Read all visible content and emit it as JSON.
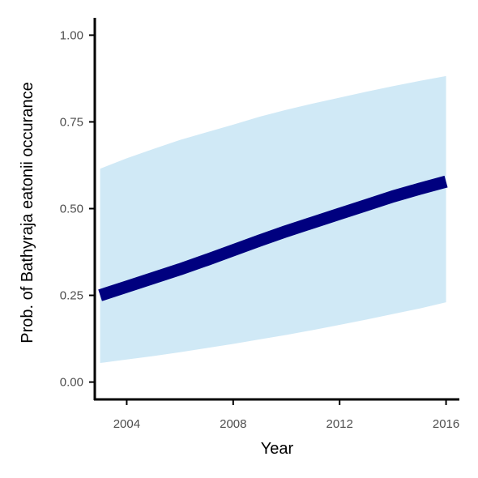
{
  "chart_data": {
    "type": "line",
    "xlabel": "Year",
    "ylabel": "Prob. of  Bathyraja eatonii  occurance",
    "xlim": [
      2002.8,
      2016.5
    ],
    "ylim": [
      -0.05,
      1.05
    ],
    "x_ticks": [
      2004,
      2008,
      2012,
      2016
    ],
    "x_tick_labels": [
      "2004",
      "2008",
      "2012",
      "2016"
    ],
    "y_ticks": [
      0.0,
      0.25,
      0.5,
      0.75,
      1.0
    ],
    "y_tick_labels": [
      "0.00",
      "0.25",
      "0.50",
      "0.75",
      "1.00"
    ],
    "grid": false,
    "legend": "none",
    "series": [
      {
        "x": [
          2003,
          2004,
          2005,
          2006,
          2007,
          2008,
          2009,
          2010,
          2011,
          2012,
          2013,
          2014,
          2015,
          2016
        ],
        "values": [
          0.25,
          0.275,
          0.3,
          0.325,
          0.352,
          0.38,
          0.408,
          0.435,
          0.46,
          0.485,
          0.51,
          0.535,
          0.557,
          0.578
        ],
        "lower": [
          0.055,
          0.065,
          0.075,
          0.086,
          0.098,
          0.11,
          0.123,
          0.136,
          0.15,
          0.165,
          0.18,
          0.196,
          0.212,
          0.23
        ],
        "upper": [
          0.615,
          0.645,
          0.672,
          0.698,
          0.72,
          0.742,
          0.765,
          0.785,
          0.803,
          0.82,
          0.837,
          0.853,
          0.868,
          0.882
        ]
      }
    ],
    "colors": {
      "line": "#00007f",
      "ribbon": "#d0e9f6",
      "axis": "#000000",
      "tick_label": "#4d4d4d"
    }
  }
}
